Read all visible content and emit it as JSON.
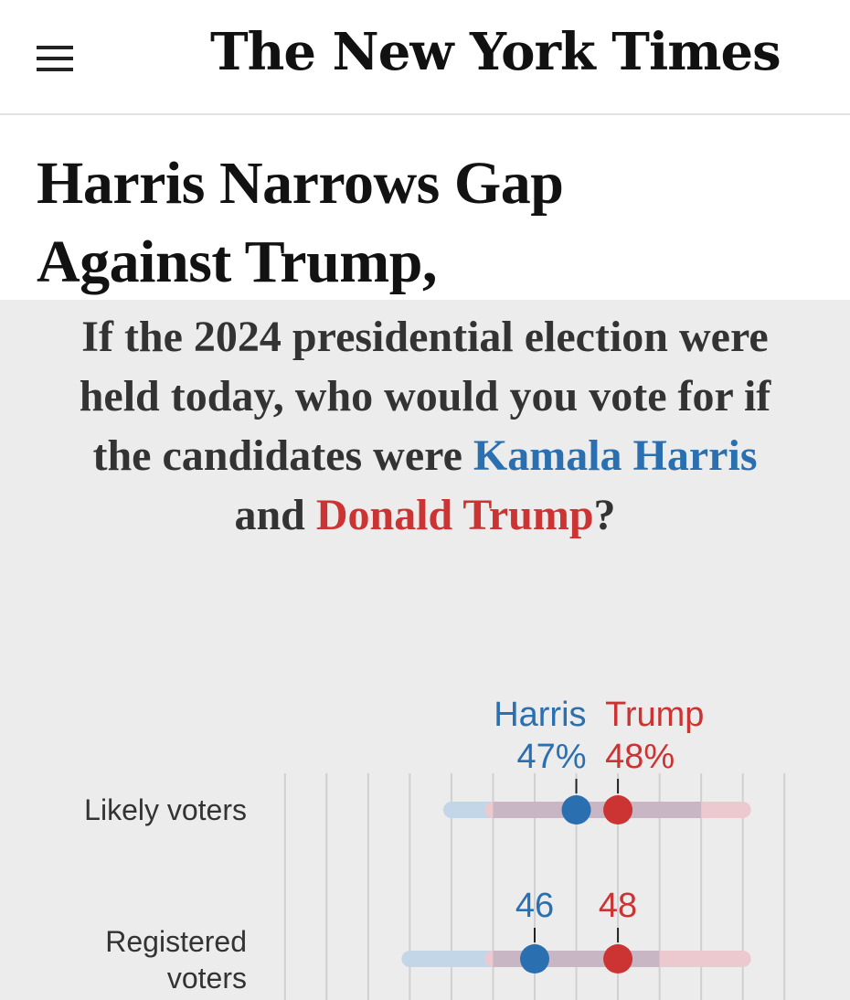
{
  "header": {
    "masthead": "The New York Times",
    "menu_icon": "hamburger-menu-icon"
  },
  "article": {
    "headline_line1": "Harris Narrows Gap",
    "headline_line2": "Against Trump,"
  },
  "graphic": {
    "question_part1": "If the 2024 presidential election were held today, who would you vote for if the candidates were ",
    "harris_name": "Kamala Harris",
    "question_and": " and ",
    "trump_name": "Donald Trump",
    "question_end": "?"
  },
  "colors": {
    "harris": "#2a6fb0",
    "trump": "#cc3333",
    "harris_range": "#c3d6e8",
    "trump_range": "#ebc9cf",
    "overlap_range": "#c8b6c5"
  },
  "chart_data": {
    "type": "dot-range",
    "series": [
      {
        "name": "Harris",
        "color": "#2a6fb0"
      },
      {
        "name": "Trump",
        "color": "#cc3333"
      }
    ],
    "rows": [
      {
        "label_lines": [
          "Likely voters"
        ],
        "harris": 47,
        "trump": 48,
        "harris_range": [
          44,
          50
        ],
        "trump_range": [
          45,
          51
        ],
        "harris_value_label": "47%",
        "trump_value_label": "48%",
        "show_names": true
      },
      {
        "label_lines": [
          "Registered",
          "voters"
        ],
        "harris": 46,
        "trump": 48,
        "harris_range": [
          43,
          49
        ],
        "trump_range": [
          45,
          51
        ],
        "harris_value_label": "46",
        "trump_value_label": "48",
        "show_names": false
      }
    ],
    "xlim": [
      39.5,
      52.5
    ],
    "grid": true
  }
}
